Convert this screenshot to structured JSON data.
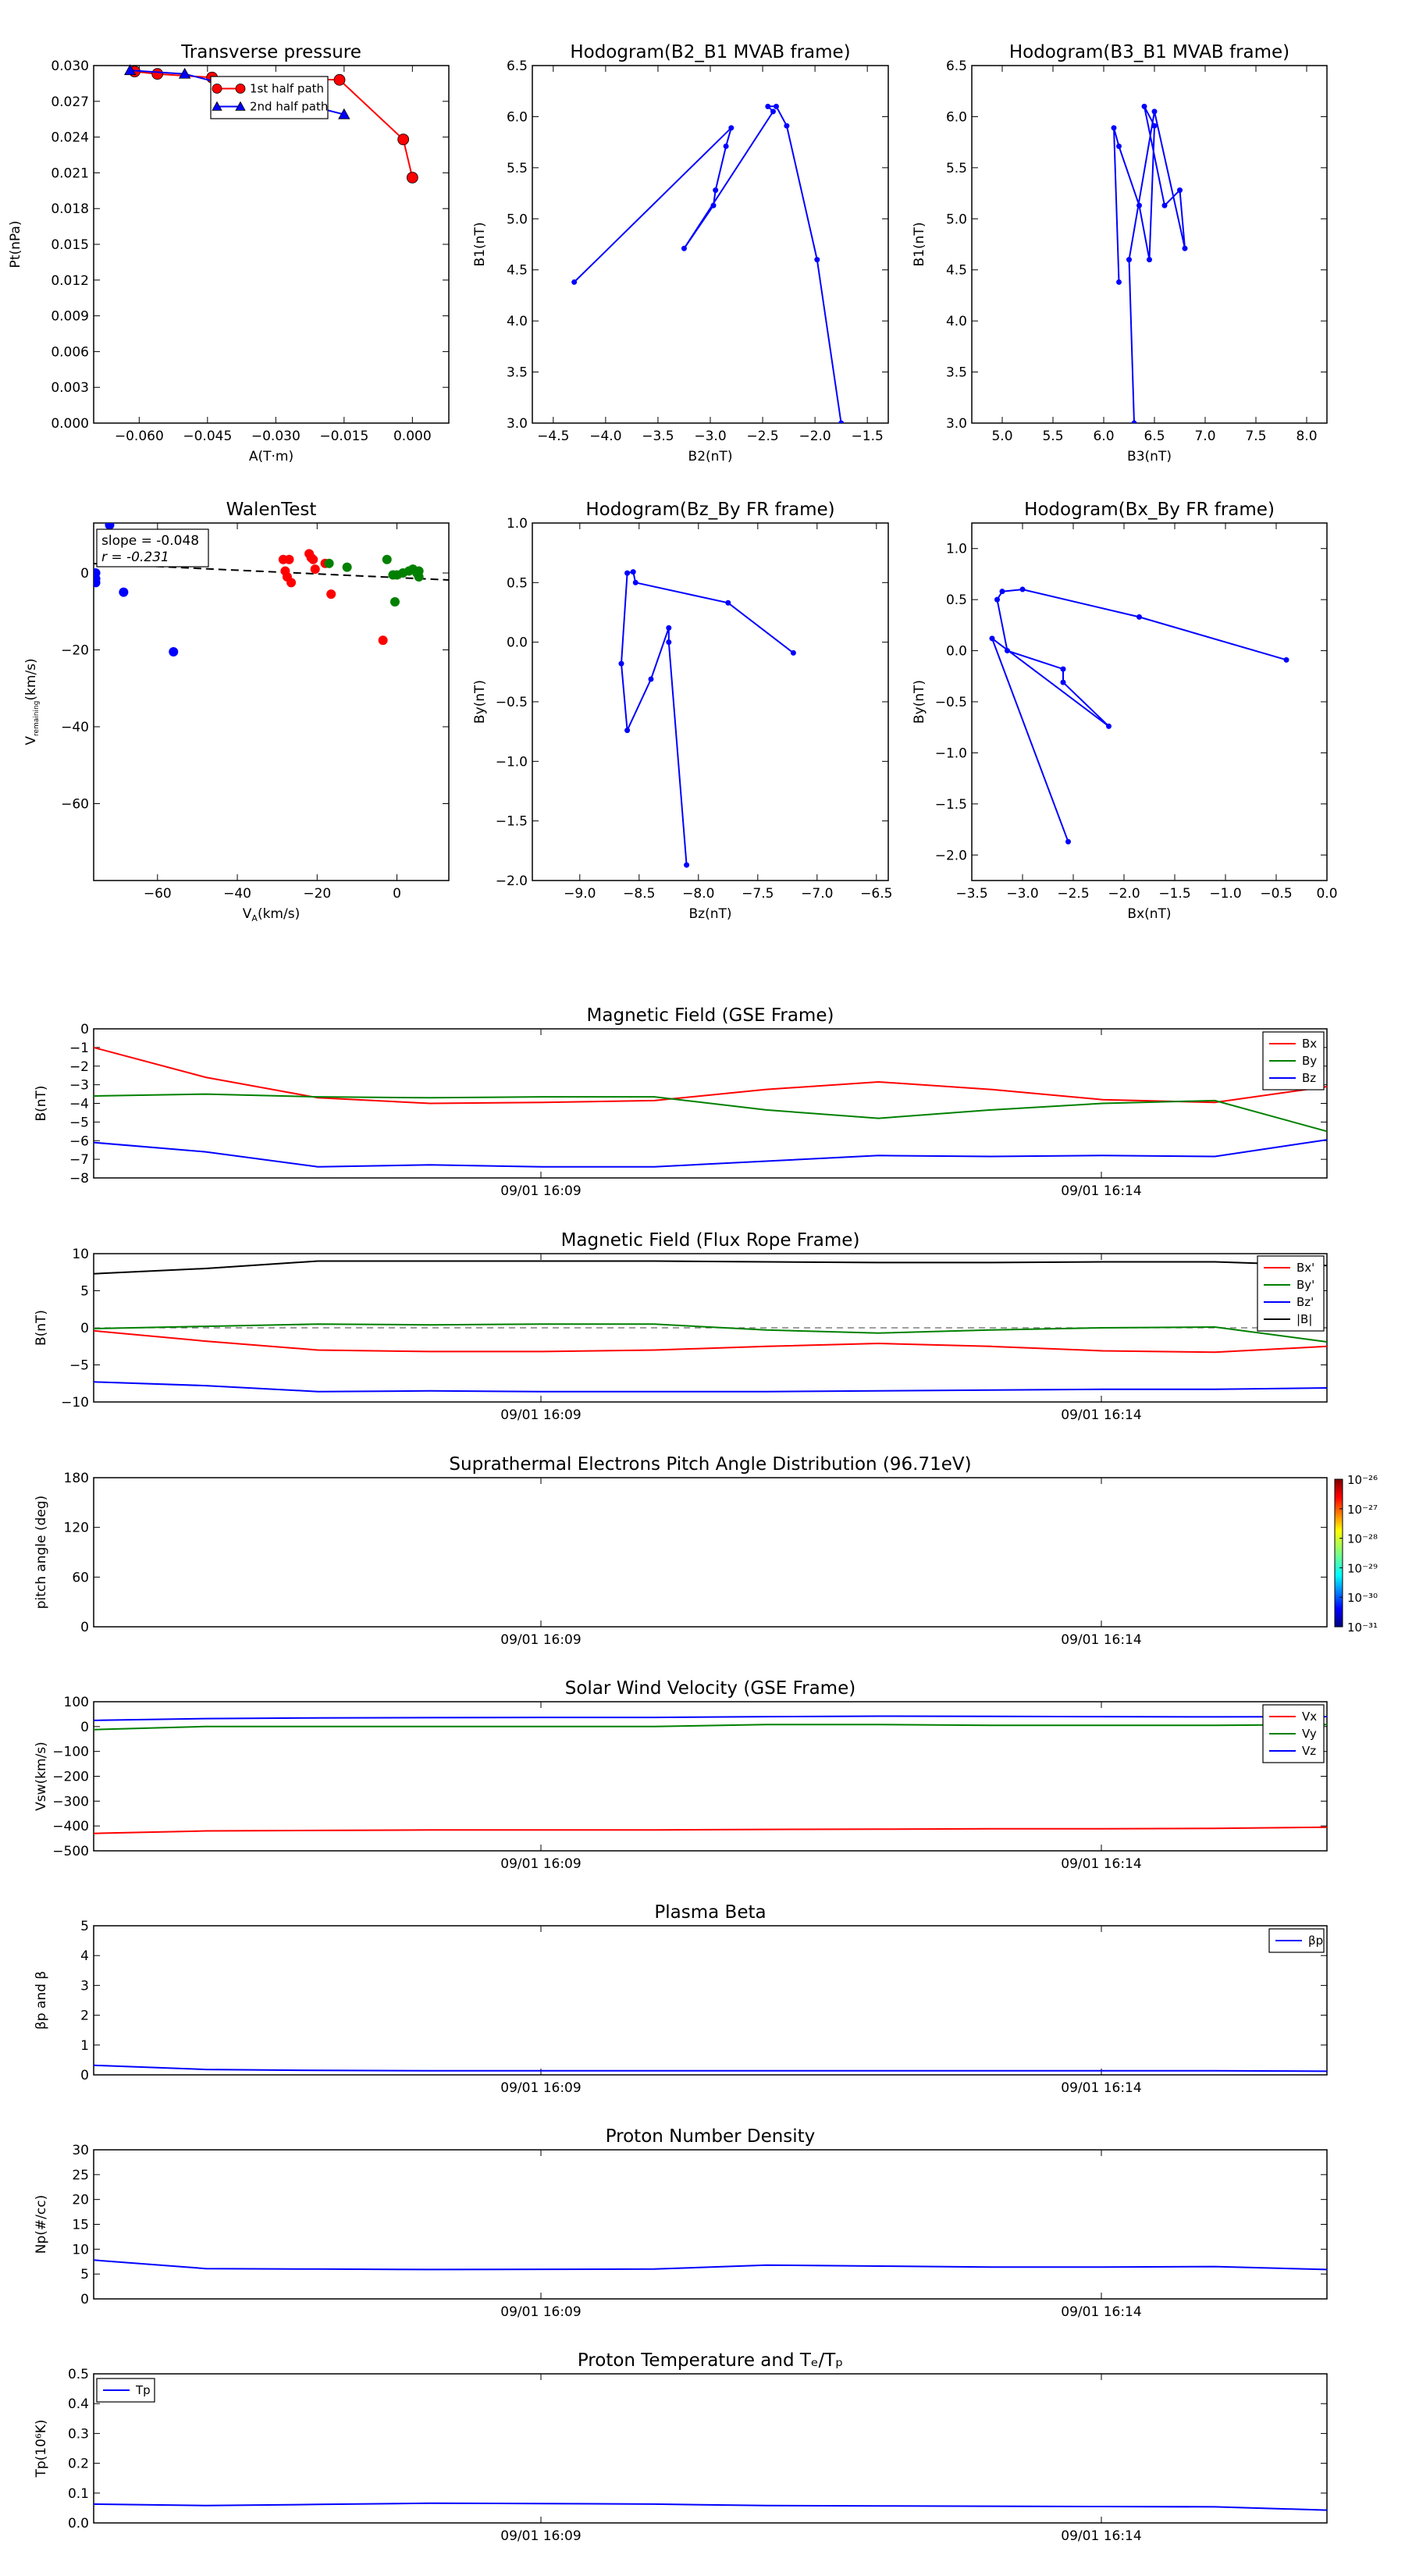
{
  "chart_data": [
    {
      "id": "pt",
      "type": "line",
      "title": "Transverse pressure",
      "xlabel": "A(T·m)",
      "ylabel": "Pt(nPa)",
      "xlim": [
        -0.07,
        0.008
      ],
      "ylim": [
        0,
        0.03
      ],
      "xticks": [
        -0.06,
        -0.045,
        -0.03,
        -0.015,
        0.0
      ],
      "xticklabels": [
        "−0.060",
        "−0.045",
        "−0.030",
        "−0.015",
        "0.000"
      ],
      "yticks": [
        0,
        0.003,
        0.006,
        0.009,
        0.012,
        0.015,
        0.018,
        0.021,
        0.024,
        0.027,
        0.03
      ],
      "yticklabels": [
        "0.000",
        "0.003",
        "0.006",
        "0.009",
        "0.012",
        "0.015",
        "0.018",
        "0.021",
        "0.024",
        "0.027",
        "0.030"
      ],
      "legend": {
        "position": "top-center",
        "entries": [
          "1st half path",
          "2nd half path"
        ]
      },
      "series": [
        {
          "name": "1st half path",
          "color": "#ff0000",
          "marker": "circle",
          "x": [
            -0.061,
            -0.056,
            -0.044,
            -0.016,
            -0.002,
            0.0
          ],
          "y": [
            0.0295,
            0.0293,
            0.029,
            0.0288,
            0.0238,
            0.0206
          ]
        },
        {
          "name": "2nd half path",
          "color": "#0000ff",
          "marker": "triangle",
          "x": [
            -0.062,
            -0.05,
            -0.015
          ],
          "y": [
            0.0296,
            0.0293,
            0.0259
          ]
        }
      ]
    },
    {
      "id": "h23",
      "type": "line",
      "title": "Hodogram(B2_B1 MVAB frame)",
      "xlabel": "B2(nT)",
      "ylabel": "B1(nT)",
      "xlim": [
        -4.7,
        -1.3
      ],
      "ylim": [
        3.0,
        6.5
      ],
      "xticks": [
        -4.5,
        -4.0,
        -3.5,
        -3.0,
        -2.5,
        -2.0,
        -1.5
      ],
      "xticklabels": [
        "−4.5",
        "−4.0",
        "−3.5",
        "−3.0",
        "−2.5",
        "−2.0",
        "−1.5"
      ],
      "yticks": [
        3.0,
        3.5,
        4.0,
        4.5,
        5.0,
        5.5,
        6.0,
        6.5
      ],
      "yticklabels": [
        "3.0",
        "3.5",
        "4.0",
        "4.5",
        "5.0",
        "5.5",
        "6.0",
        "6.5"
      ],
      "series": [
        {
          "color": "#0000ff",
          "x": [
            -4.3,
            -2.8,
            -2.85,
            -2.95,
            -2.97,
            -3.25,
            -2.4,
            -2.45,
            -2.37,
            -2.27,
            -1.98,
            -1.75
          ],
          "y": [
            4.38,
            5.89,
            5.71,
            5.28,
            5.13,
            4.71,
            6.05,
            6.1,
            6.1,
            5.91,
            4.6,
            3.0
          ]
        }
      ]
    },
    {
      "id": "h31",
      "type": "line",
      "title": "Hodogram(B3_B1 MVAB frame)",
      "xlabel": "B3(nT)",
      "ylabel": "B1(nT)",
      "xlim": [
        4.7,
        8.2
      ],
      "ylim": [
        3.0,
        6.5
      ],
      "xticks": [
        5.0,
        5.5,
        6.0,
        6.5,
        7.0,
        7.5,
        8.0
      ],
      "xticklabels": [
        "5.0",
        "5.5",
        "6.0",
        "6.5",
        "7.0",
        "7.5",
        "8.0"
      ],
      "yticks": [
        3.0,
        3.5,
        4.0,
        4.5,
        5.0,
        5.5,
        6.0,
        6.5
      ],
      "yticklabels": [
        "3.0",
        "3.5",
        "4.0",
        "4.5",
        "5.0",
        "5.5",
        "6.0",
        "6.5"
      ],
      "series": [
        {
          "color": "#0000ff",
          "x": [
            6.15,
            6.1,
            6.15,
            6.35,
            6.45,
            6.5,
            6.4,
            6.6,
            6.75,
            6.8,
            6.5,
            6.25,
            6.3
          ],
          "y": [
            4.38,
            5.89,
            5.71,
            5.13,
            4.6,
            5.91,
            6.1,
            5.13,
            5.28,
            4.71,
            6.05,
            4.6,
            3.0
          ]
        }
      ]
    },
    {
      "id": "walen",
      "type": "scatter",
      "title": "WalenTest",
      "xlabel": "V_A(km/s)",
      "ylabel": "V_remaining(km/s)",
      "xlim": [
        -76,
        13
      ],
      "ylim": [
        -80,
        13
      ],
      "xticks": [
        -60,
        -40,
        -20,
        0
      ],
      "xticklabels": [
        "−60",
        "−40",
        "−20",
        "0"
      ],
      "yticks": [
        0,
        -20,
        -40,
        -60
      ],
      "yticklabels": [
        "0",
        "−20",
        "−40",
        "−60"
      ],
      "annotation": [
        "slope = -0.048",
        "r = -0.231"
      ],
      "fit": {
        "slope": -0.048,
        "intercept": -1.2,
        "x": [
          -76,
          13
        ]
      },
      "series": [
        {
          "color": "#0000ff",
          "x": [
            -72.0,
            -75.5,
            -75.5,
            -75.5,
            -68.5,
            -56.0
          ],
          "y": [
            12.5,
            0.0,
            -1.5,
            -2.5,
            -5.0,
            -20.5
          ]
        },
        {
          "color": "#ff0000",
          "x": [
            -28.5,
            -28.0,
            -27.5,
            -27.0,
            -26.5,
            -22.0,
            -21.5,
            -21.0,
            -20.5,
            -18.0,
            -16.5,
            -3.5
          ],
          "y": [
            3.5,
            0.5,
            -1.0,
            3.5,
            -2.5,
            5.0,
            4.0,
            3.5,
            1.0,
            2.5,
            -5.5,
            -17.5
          ]
        },
        {
          "color": "#008000",
          "x": [
            -17.0,
            -12.5,
            -2.5,
            -1.0,
            0.0,
            1.5,
            3.0,
            4.0,
            5.0,
            5.5,
            -0.5,
            5.5
          ],
          "y": [
            2.5,
            1.5,
            3.5,
            -0.5,
            -0.5,
            0.0,
            0.5,
            1.0,
            0.0,
            0.5,
            -7.5,
            -1.0
          ]
        }
      ]
    },
    {
      "id": "hzy",
      "type": "line",
      "title": "Hodogram(Bz_By FR frame)",
      "xlabel": "Bz(nT)",
      "ylabel": "By(nT)",
      "xlim": [
        -9.4,
        -6.4
      ],
      "ylim": [
        -2.0,
        1.0
      ],
      "xticks": [
        -9.0,
        -8.5,
        -8.0,
        -7.5,
        -7.0,
        -6.5
      ],
      "xticklabels": [
        "−9.0",
        "−8.5",
        "−8.0",
        "−7.5",
        "−7.0",
        "−6.5"
      ],
      "yticks": [
        1.0,
        0.5,
        0.0,
        -0.5,
        -1.0,
        -1.5,
        -2.0
      ],
      "yticklabels": [
        "1.0",
        "0.5",
        "0.0",
        "−0.5",
        "−1.0",
        "−1.5",
        "−2.0"
      ],
      "series": [
        {
          "color": "#0000ff",
          "x": [
            -8.1,
            -8.25,
            -8.25,
            -8.4,
            -8.6,
            -8.65,
            -8.6,
            -8.55,
            -8.53,
            -7.75,
            -7.2
          ],
          "y": [
            -1.87,
            0.0,
            0.12,
            -0.31,
            -0.74,
            -0.18,
            0.58,
            0.59,
            0.5,
            0.33,
            -0.09
          ]
        }
      ]
    },
    {
      "id": "hxy",
      "type": "line",
      "title": "Hodogram(Bx_By FR frame)",
      "xlabel": "Bx(nT)",
      "ylabel": "By(nT)",
      "xlim": [
        -3.5,
        0.0
      ],
      "ylim": [
        -2.25,
        1.25
      ],
      "xticks": [
        -3.5,
        -3.0,
        -2.5,
        -2.0,
        -1.5,
        -1.0,
        -0.5,
        0.0
      ],
      "xticklabels": [
        "−3.5",
        "−3.0",
        "−2.5",
        "−2.0",
        "−1.5",
        "−1.0",
        "−0.5",
        "0.0"
      ],
      "yticks": [
        1.0,
        0.5,
        0.0,
        -0.5,
        -1.0,
        -1.5,
        -2.0
      ],
      "yticklabels": [
        "1.0",
        "0.5",
        "0.0",
        "−0.5",
        "−1.0",
        "−1.5",
        "−2.0"
      ],
      "series": [
        {
          "color": "#0000ff",
          "x": [
            -2.55,
            -3.3,
            -2.15,
            -2.6,
            -2.6,
            -3.15,
            -3.25,
            -3.2,
            -3.0,
            -1.85,
            -0.4
          ],
          "y": [
            -1.87,
            0.12,
            -0.74,
            -0.31,
            -0.18,
            0.0,
            0.5,
            0.58,
            0.6,
            0.33,
            -0.09
          ]
        }
      ]
    },
    {
      "id": "bgse",
      "type": "line",
      "title": "Magnetic Field (GSE Frame)",
      "ylabel": "B(nT)",
      "ylim": [
        -8,
        0
      ],
      "yticks": [
        0,
        -1,
        -2,
        -3,
        -4,
        -5,
        -6,
        -7,
        -8
      ],
      "yticklabels": [
        "0",
        "−1",
        "−2",
        "−3",
        "−4",
        "−5",
        "−6",
        "−7",
        "−8"
      ],
      "xticklabels": [
        "09/01 16:09",
        "09/01 16:14"
      ],
      "legend": {
        "position": "top-right",
        "entries": [
          "Bx",
          "By",
          "Bz"
        ]
      },
      "series": [
        {
          "name": "Bx",
          "color": "#ff0000",
          "y": [
            -1.0,
            -2.6,
            -3.7,
            -4.0,
            -3.95,
            -3.85,
            -3.25,
            -2.85,
            -3.25,
            -3.8,
            -3.95,
            -3.1
          ]
        },
        {
          "name": "By",
          "color": "#008000",
          "y": [
            -3.6,
            -3.5,
            -3.65,
            -3.7,
            -3.65,
            -3.65,
            -4.35,
            -4.8,
            -4.35,
            -4.0,
            -3.85,
            -5.5
          ]
        },
        {
          "name": "Bz",
          "color": "#0000ff",
          "y": [
            -6.1,
            -6.6,
            -7.4,
            -7.3,
            -7.4,
            -7.4,
            -7.1,
            -6.8,
            -6.85,
            -6.8,
            -6.85,
            -5.95
          ]
        }
      ]
    },
    {
      "id": "bfr",
      "type": "line",
      "title": "Magnetic Field (Flux Rope Frame)",
      "ylabel": "B(nT)",
      "ylim": [
        -10,
        10
      ],
      "yticks": [
        10,
        5,
        0,
        -5,
        -10
      ],
      "yticklabels": [
        "10",
        "5",
        "0",
        "−5",
        "−10"
      ],
      "xticklabels": [
        "09/01 16:09",
        "09/01 16:14"
      ],
      "zero_line": true,
      "legend": {
        "position": "top-right",
        "entries": [
          "Bx'",
          "By'",
          "Bz'",
          "|B|"
        ]
      },
      "series": [
        {
          "name": "Bx'",
          "color": "#ff0000",
          "y": [
            -0.4,
            -1.8,
            -3.0,
            -3.2,
            -3.2,
            -3.0,
            -2.5,
            -2.1,
            -2.5,
            -3.1,
            -3.3,
            -2.5
          ]
        },
        {
          "name": "By'",
          "color": "#008000",
          "y": [
            -0.1,
            0.2,
            0.5,
            0.4,
            0.5,
            0.5,
            -0.3,
            -0.7,
            -0.3,
            0.0,
            0.1,
            -1.9
          ]
        },
        {
          "name": "Bz'",
          "color": "#0000ff",
          "y": [
            -7.3,
            -7.8,
            -8.6,
            -8.5,
            -8.6,
            -8.6,
            -8.6,
            -8.5,
            -8.4,
            -8.3,
            -8.3,
            -8.1
          ]
        },
        {
          "name": "|B|",
          "color": "#000000",
          "y": [
            7.3,
            8.0,
            9.0,
            9.0,
            9.0,
            9.0,
            8.9,
            8.8,
            8.8,
            8.9,
            8.9,
            8.4
          ]
        }
      ]
    },
    {
      "id": "pad",
      "type": "heatmap",
      "title": "Suprathermal Electrons Pitch Angle Distribution (96.71eV)",
      "ylabel": "pitch angle (deg)",
      "ylim": [
        0,
        180
      ],
      "yticks": [
        0,
        60,
        120,
        180
      ],
      "yticklabels": [
        "0",
        "60",
        "120",
        "180"
      ],
      "xticklabels": [
        "09/01 16:09",
        "09/01 16:14"
      ],
      "colorbar": {
        "labels": [
          "10⁻³¹",
          "10⁻³⁰",
          "10⁻²⁹",
          "10⁻²⁸",
          "10⁻²⁷",
          "10⁻²⁶"
        ]
      }
    },
    {
      "id": "vsw",
      "type": "line",
      "title": "Solar Wind Velocity (GSE Frame)",
      "ylabel": "Vsw(km/s)",
      "ylim": [
        -500,
        100
      ],
      "yticks": [
        100,
        0,
        -100,
        -200,
        -300,
        -400,
        -500
      ],
      "yticklabels": [
        "100",
        "0",
        "−100",
        "−200",
        "−300",
        "−400",
        "−500"
      ],
      "xticklabels": [
        "09/01 16:09",
        "09/01 16:14"
      ],
      "legend": {
        "position": "top-right",
        "entries": [
          "Vx",
          "Vy",
          "Vz"
        ]
      },
      "series": [
        {
          "name": "Vx",
          "color": "#ff0000",
          "y": [
            -430,
            -420,
            -418,
            -416,
            -416,
            -416,
            -414,
            -413,
            -411,
            -411,
            -410,
            -405
          ]
        },
        {
          "name": "Vy",
          "color": "#008000",
          "y": [
            -12,
            0,
            0,
            0,
            0,
            0,
            8,
            8,
            5,
            5,
            5,
            8
          ]
        },
        {
          "name": "Vz",
          "color": "#0000ff",
          "y": [
            25,
            32,
            35,
            36,
            37,
            37,
            40,
            42,
            41,
            40,
            39,
            40
          ]
        }
      ]
    },
    {
      "id": "beta",
      "type": "line",
      "title": "Plasma Beta",
      "ylabel": "βp and β",
      "ylim": [
        0,
        5
      ],
      "yticks": [
        5,
        4,
        3,
        2,
        1,
        0
      ],
      "yticklabels": [
        "5",
        "4",
        "3",
        "2",
        "1",
        "0"
      ],
      "xticklabels": [
        "09/01 16:09",
        "09/01 16:14"
      ],
      "legend": {
        "position": "top-right",
        "entries": [
          "βp"
        ]
      },
      "series": [
        {
          "name": "βp",
          "color": "#0000ff",
          "y": [
            0.32,
            0.18,
            0.15,
            0.14,
            0.14,
            0.14,
            0.14,
            0.14,
            0.14,
            0.14,
            0.14,
            0.12
          ]
        }
      ]
    },
    {
      "id": "np",
      "type": "line",
      "title": "Proton Number Density",
      "ylabel": "Np(#/cc)",
      "ylim": [
        0,
        30
      ],
      "yticks": [
        30,
        25,
        20,
        15,
        10,
        5,
        0
      ],
      "yticklabels": [
        "30",
        "25",
        "20",
        "15",
        "10",
        "5",
        "0"
      ],
      "xticklabels": [
        "09/01 16:09",
        "09/01 16:14"
      ],
      "series": [
        {
          "color": "#0000ff",
          "y": [
            7.8,
            6.1,
            6.0,
            5.9,
            5.95,
            6.0,
            6.8,
            6.6,
            6.4,
            6.4,
            6.5,
            5.9
          ]
        }
      ]
    },
    {
      "id": "tp",
      "type": "line",
      "title": "Proton Temperature and Tₑ/Tₚ",
      "ylabel": "Tp(10⁶K)",
      "ylim": [
        0,
        0.5
      ],
      "yticks": [
        0.5,
        0.4,
        0.3,
        0.2,
        0.1,
        0.0
      ],
      "yticklabels": [
        "0.5",
        "0.4",
        "0.3",
        "0.2",
        "0.1",
        "0.0"
      ],
      "xticklabels": [
        "09/01 16:09",
        "09/01 16:14"
      ],
      "legend": {
        "position": "top-left",
        "entries": [
          "Tp"
        ]
      },
      "series": [
        {
          "name": "Tp",
          "color": "#0000ff",
          "y": [
            0.063,
            0.058,
            0.062,
            0.066,
            0.065,
            0.063,
            0.058,
            0.057,
            0.056,
            0.055,
            0.054,
            0.043
          ]
        }
      ]
    }
  ]
}
